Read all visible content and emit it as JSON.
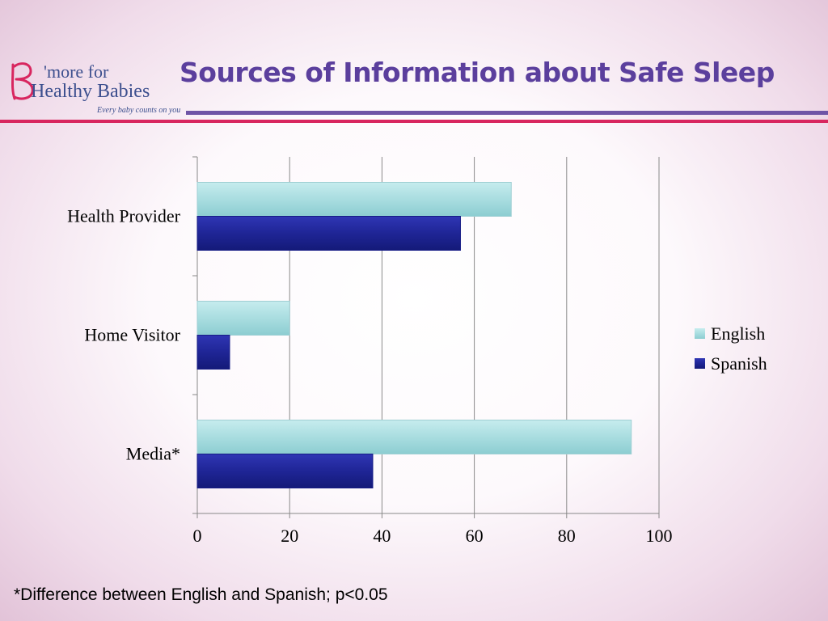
{
  "logo": {
    "line1": "'more for",
    "line2": "Healthy Babies",
    "tagline": "Every baby counts on you"
  },
  "title": "Sources of Information about Safe Sleep",
  "footnote": "*Difference between English and Spanish; p<0.05",
  "colors": {
    "english": "#a9dde0",
    "spanish": "#1f2596",
    "title": "#5b3f9d",
    "accent_pink": "#d8265f",
    "accent_purple": "#6f55a6"
  },
  "chart_data": {
    "type": "bar",
    "orientation": "horizontal",
    "categories": [
      "Health Provider",
      "Home Visitor",
      "Media*"
    ],
    "series": [
      {
        "name": "English",
        "values": [
          68,
          20,
          94
        ]
      },
      {
        "name": "Spanish",
        "values": [
          57,
          7,
          38
        ]
      }
    ],
    "xlim": [
      0,
      100
    ],
    "xticks": [
      0,
      20,
      40,
      60,
      80,
      100
    ],
    "grid": true,
    "legend": "right"
  }
}
